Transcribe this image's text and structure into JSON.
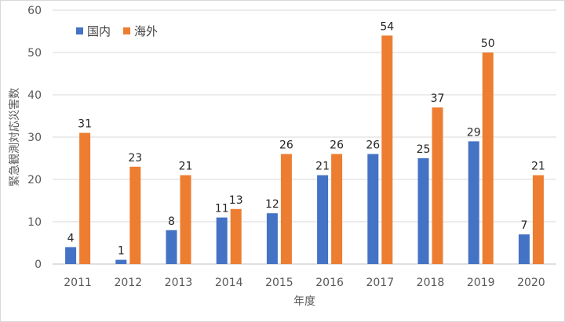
{
  "chart_data": {
    "type": "bar",
    "title": "",
    "xlabel": "年度",
    "ylabel": "緊急観測対応災害数",
    "categories": [
      "2011",
      "2012",
      "2013",
      "2014",
      "2015",
      "2016",
      "2017",
      "2018",
      "2019",
      "2020"
    ],
    "series": [
      {
        "name": "国内",
        "color": "#4472c4",
        "values": [
          4,
          1,
          8,
          11,
          12,
          21,
          26,
          25,
          29,
          7
        ]
      },
      {
        "name": "海外",
        "color": "#ed7d31",
        "values": [
          31,
          23,
          21,
          13,
          26,
          26,
          54,
          37,
          50,
          21
        ]
      }
    ],
    "ylim": [
      0,
      60
    ],
    "yticks": [
      0,
      10,
      20,
      30,
      40,
      50,
      60
    ],
    "grid": true,
    "legend_position": "top-left",
    "data_labels": true
  }
}
